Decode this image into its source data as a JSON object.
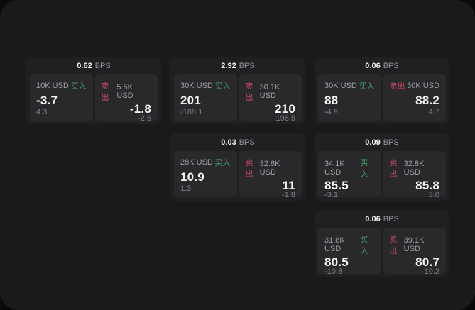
{
  "labels": {
    "bps_unit": "BPS",
    "buy": "买入",
    "sell": "卖出"
  },
  "colors": {
    "backdrop": "#0a0a0b",
    "panel_bg": "#1a1a1c",
    "card_bg": "#202023",
    "tile_bg": "#29292c",
    "buy_accent": "#41ab6e",
    "sell_accent": "#c84a5f"
  },
  "cards": [
    {
      "bps": "0.62",
      "buy": {
        "amount": "10K USD",
        "price": "-3.7",
        "delta": "4.3"
      },
      "sell": {
        "amount": "5.5K USD",
        "price": "-1.8",
        "delta": "-2.6"
      }
    },
    {
      "bps": "2.92",
      "buy": {
        "amount": "30K USD",
        "price": "201",
        "delta": "-188.1"
      },
      "sell": {
        "amount": "30.1K USD",
        "price": "210",
        "delta": "196.5"
      }
    },
    {
      "bps": "0.06",
      "buy": {
        "amount": "30K USD",
        "price": "88",
        "delta": "-4.9"
      },
      "sell": {
        "amount": "30K USD",
        "price": "88.2",
        "delta": "4.7"
      }
    },
    {
      "bps": "0.03",
      "buy": {
        "amount": "28K USD",
        "price": "10.9",
        "delta": "1.3"
      },
      "sell": {
        "amount": "32.6K USD",
        "price": "11",
        "delta": "-1.8"
      }
    },
    {
      "bps": "0.09",
      "buy": {
        "amount": "34.1K USD",
        "price": "85.5",
        "delta": "-3.1"
      },
      "sell": {
        "amount": "32.8K USD",
        "price": "85.8",
        "delta": "3.0"
      }
    },
    {
      "bps": "0.06",
      "buy": {
        "amount": "31.8K USD",
        "price": "80.5",
        "delta": "-10.8"
      },
      "sell": {
        "amount": "39.1K USD",
        "price": "80.7",
        "delta": "10.2"
      }
    }
  ]
}
